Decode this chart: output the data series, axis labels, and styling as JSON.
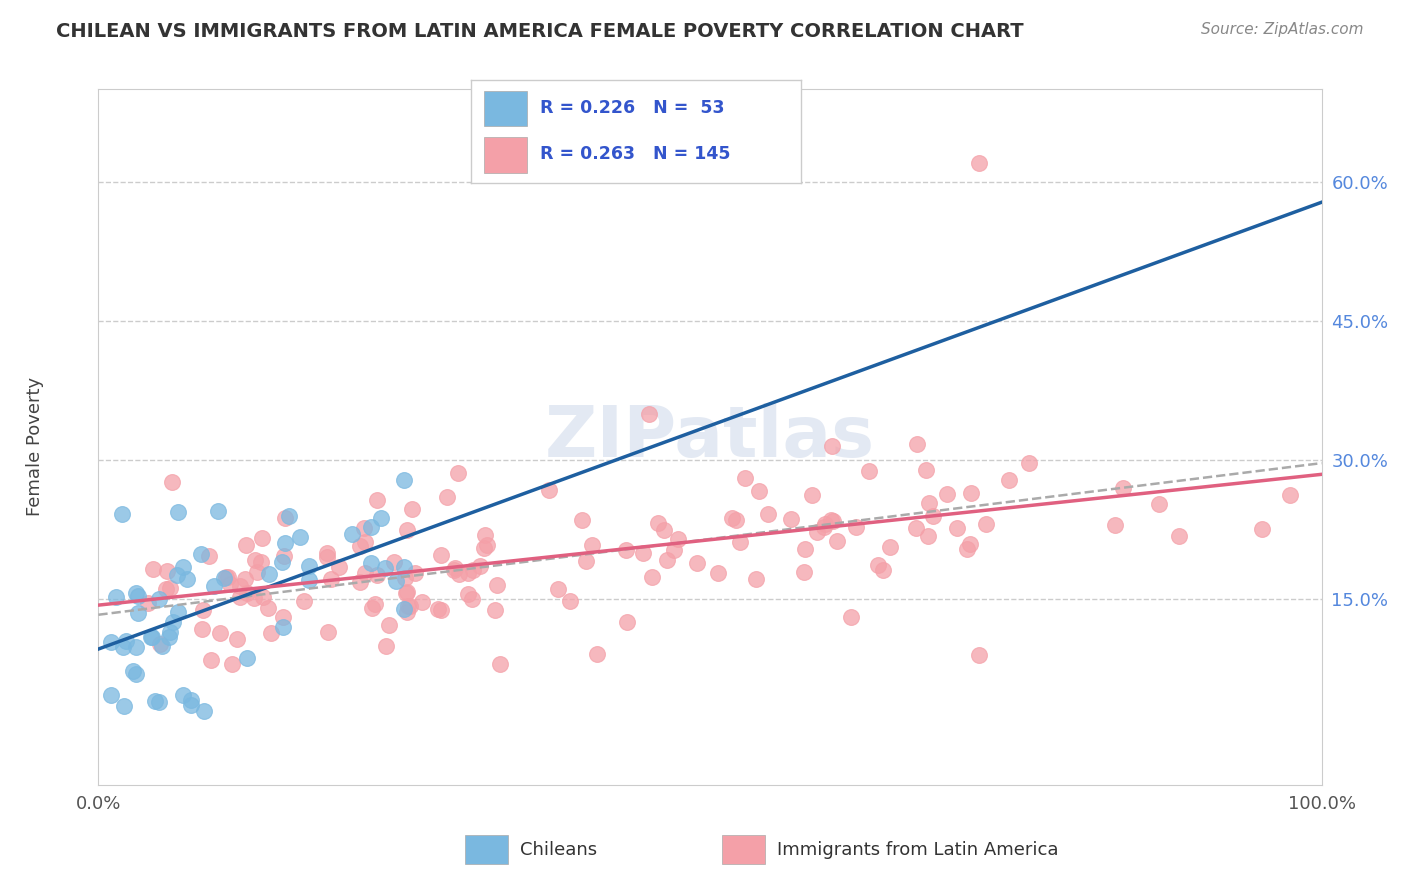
{
  "title": "CHILEAN VS IMMIGRANTS FROM LATIN AMERICA FEMALE POVERTY CORRELATION CHART",
  "source": "Source: ZipAtlas.com",
  "ylabel": "Female Poverty",
  "y_ticks": [
    0.15,
    0.3,
    0.45,
    0.6
  ],
  "y_tick_labels": [
    "15.0%",
    "30.0%",
    "45.0%",
    "60.0%"
  ],
  "xlim": [
    0.0,
    1.0
  ],
  "ylim": [
    -0.05,
    0.7
  ],
  "R_chileans": 0.226,
  "N_chileans": 53,
  "R_immigrants": 0.263,
  "N_immigrants": 145,
  "color_chilean": "#7ab8e0",
  "color_immigrant": "#f4a0a8",
  "color_chilean_line": "#1e5fa0",
  "color_immigrant_line": "#e06080",
  "color_combined_line": "#aaaaaa",
  "legend_text_color": "#3355cc",
  "legend_label_chileans": "Chileans",
  "legend_label_immigrants": "Immigrants from Latin America",
  "watermark": "ZIPatlas",
  "grid_color": "#cccccc",
  "background_color": "#ffffff",
  "title_color": "#333333",
  "source_color": "#888888"
}
